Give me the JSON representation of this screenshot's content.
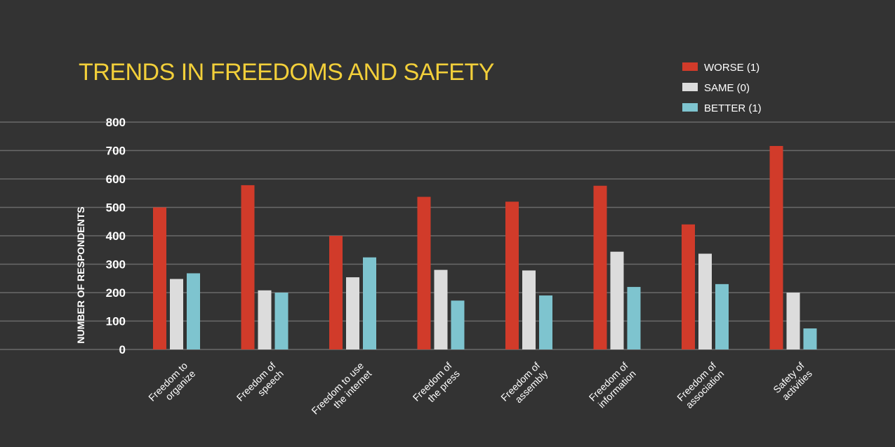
{
  "chart_data": {
    "type": "bar",
    "title": "TRENDS IN FREEDOMS AND SAFETY",
    "xlabel": "",
    "ylabel": "NUMBER OF RESPONDENTS",
    "ylim": [
      0,
      800
    ],
    "yticks": [
      0,
      100,
      200,
      300,
      400,
      500,
      600,
      700,
      800
    ],
    "grid": true,
    "legend_position": "top-right",
    "categories": [
      [
        "Freedom to",
        "organize"
      ],
      [
        "Freedom of",
        "speech"
      ],
      [
        "Freedom to use",
        "the internet"
      ],
      [
        "Freedom of",
        "the press"
      ],
      [
        "Freedom of",
        "assembly"
      ],
      [
        "Freedom of",
        "information"
      ],
      [
        "Freedom of",
        "association"
      ],
      [
        "Safety of",
        "activities"
      ]
    ],
    "series": [
      {
        "name": "WORSE (1)",
        "color": "#d13b2a",
        "values": [
          500,
          578,
          400,
          537,
          520,
          576,
          440,
          716
        ]
      },
      {
        "name": "SAME (0)",
        "color": "#dcdcdc",
        "values": [
          248,
          208,
          254,
          280,
          278,
          344,
          337,
          200
        ]
      },
      {
        "name": "BETTER (1)",
        "color": "#7ec4cf",
        "values": [
          268,
          200,
          324,
          172,
          190,
          220,
          230,
          74
        ]
      }
    ]
  }
}
